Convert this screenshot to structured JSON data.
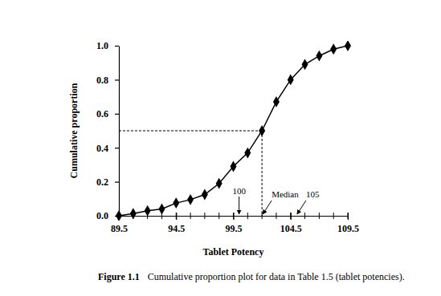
{
  "chart_data": {
    "type": "line",
    "title": "Figure 1.1",
    "caption": "Cumulative proportion plot for data in Table 1.5 (tablet potencies).",
    "xlabel": "Tablet Potency",
    "ylabel": "Cumulative proportion",
    "x": [
      89.5,
      90.75,
      92,
      93.25,
      94.5,
      95.75,
      97,
      98.25,
      99.5,
      100.75,
      102,
      103.25,
      104.5,
      105.75,
      107,
      108.25,
      109.5
    ],
    "series": [
      {
        "color": "#000000",
        "marker": "diamond",
        "line_style": "solid",
        "values": [
          0,
          0.013,
          0.03,
          0.04,
          0.075,
          0.095,
          0.125,
          0.19,
          0.29,
          0.37,
          0.5,
          0.67,
          0.8,
          0.89,
          0.94,
          0.98,
          1.0
        ]
      }
    ],
    "xlim": [
      89.5,
      109.5
    ],
    "xticks": [
      89.5,
      94.5,
      99.5,
      104.5,
      109.5
    ],
    "ylim": [
      0,
      1
    ],
    "yticks": [
      {
        "value": 0,
        "label": "0.0"
      },
      0.2,
      0.4,
      0.6,
      0.8,
      {
        "value": 1,
        "label": "1.0"
      }
    ],
    "grid": false,
    "annotations": [
      {
        "text": "100",
        "x": 100
      },
      {
        "text": "Median",
        "x": 102,
        "y": 0.5
      },
      {
        "text": "105",
        "x": 105
      }
    ]
  }
}
